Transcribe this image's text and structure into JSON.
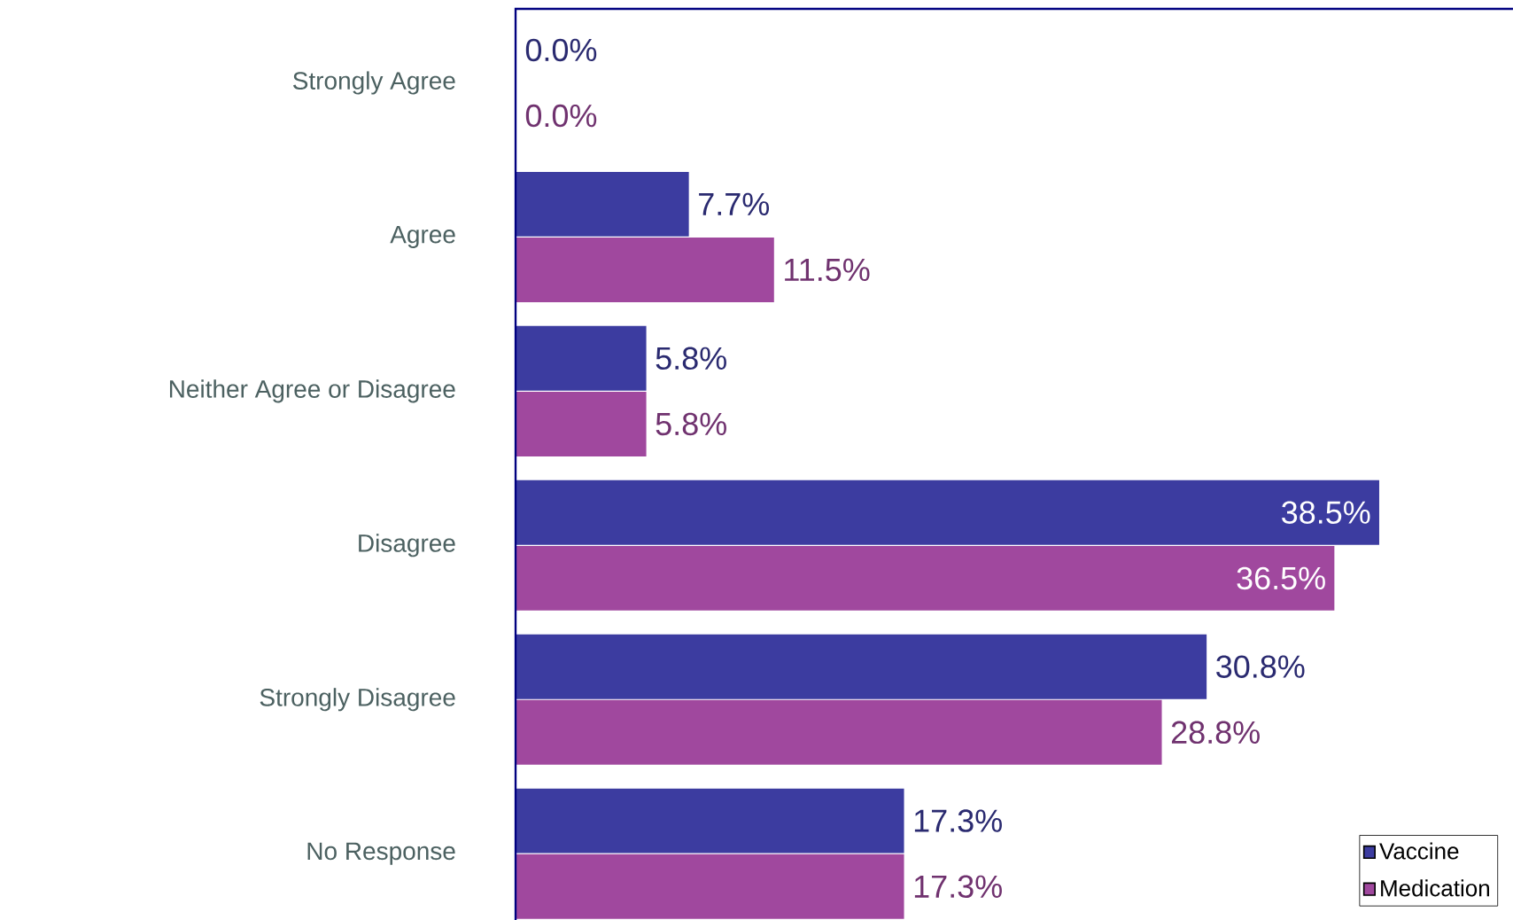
{
  "chart_data": {
    "type": "bar",
    "orientation": "horizontal",
    "categories": [
      "Strongly Agree",
      "Agree",
      "Neither Agree or Disagree",
      "Disagree",
      "Strongly Disagree",
      "No Response"
    ],
    "xlim": [
      0,
      44.5
    ],
    "series": [
      {
        "name": "Vaccine",
        "color": "#3c3ca0",
        "values": [
          0.0,
          7.7,
          5.8,
          38.5,
          30.8,
          17.3
        ],
        "value_labels": [
          "0.0%",
          "7.7%",
          "5.8%",
          "38.5%",
          "30.8%",
          "17.3%"
        ]
      },
      {
        "name": "Medication",
        "color": "#a0489e",
        "values": [
          0.0,
          11.5,
          5.8,
          36.5,
          28.8,
          17.3
        ],
        "value_labels": [
          "0.0%",
          "11.5%",
          "5.8%",
          "36.5%",
          "28.8%",
          "17.3%"
        ]
      }
    ],
    "legend": "bottom right"
  }
}
